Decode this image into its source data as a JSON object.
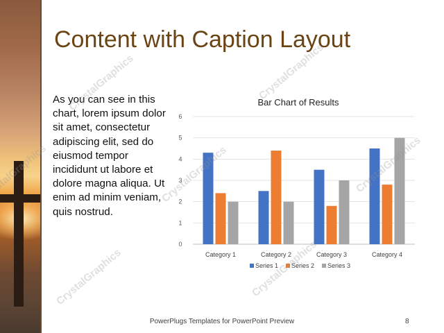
{
  "slide": {
    "title": "Content with Caption Layout",
    "caption": "As you can see in this chart, lorem ipsum dolor sit amet, consectetur adipiscing elit, sed do eiusmod tempor incididunt ut labore et dolore magna aliqua. Ut enim ad minim veniam, quis nostrud.",
    "footer": "PowerPlugs Templates for PowerPoint Preview",
    "page_number": "8",
    "watermark": "CrystalGraphics"
  },
  "colors": {
    "title": "#6b4416",
    "series1": "#4472c4",
    "series2": "#ed7d31",
    "series3": "#a5a5a5"
  },
  "chart_data": {
    "type": "bar",
    "title": "Bar Chart of Results",
    "categories": [
      "Category 1",
      "Category 2",
      "Category 3",
      "Category 4"
    ],
    "series": [
      {
        "name": "Series 1",
        "values": [
          4.3,
          2.5,
          3.5,
          4.5
        ],
        "color": "#4472c4"
      },
      {
        "name": "Series 2",
        "values": [
          2.4,
          4.4,
          1.8,
          2.8
        ],
        "color": "#ed7d31"
      },
      {
        "name": "Series 3",
        "values": [
          2,
          2,
          3,
          5
        ],
        "color": "#a5a5a5"
      }
    ],
    "ylim": [
      0,
      6
    ],
    "yticks": [
      "0",
      "1",
      "2",
      "3",
      "4",
      "5",
      "6"
    ],
    "grid": true,
    "legend": "bottom"
  }
}
